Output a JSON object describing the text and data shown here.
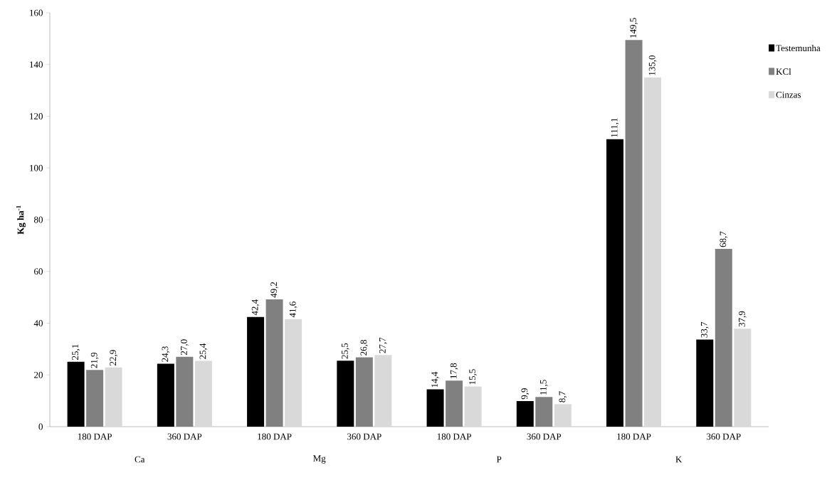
{
  "chart_data": {
    "type": "bar",
    "ylabel": "Kg ha$^{-1}$",
    "categories": [
      "180 DAP",
      "360 DAP",
      "180 DAP",
      "360 DAP",
      "180 DAP",
      "360 DAP",
      "180 DAP",
      "360 DAP"
    ],
    "annotations": [
      "Ca",
      "Mg",
      "P",
      "K"
    ],
    "series": [
      {
        "name": "Testemunha",
        "color": "#000000",
        "values": [
          25.1,
          24.3,
          42.4,
          25.5,
          14.4,
          9.9,
          111.1,
          33.7
        ],
        "value_labels": [
          "25,1",
          "24,3",
          "42,4",
          "25,5",
          "14,4",
          "9,9",
          "111,1",
          "33,7"
        ]
      },
      {
        "name": "KCl",
        "color": "#808080",
        "values": [
          21.9,
          27.0,
          49.2,
          26.8,
          17.8,
          11.5,
          149.5,
          68.7
        ],
        "value_labels": [
          "21,9",
          "27,0",
          "49,2",
          "26,8",
          "17,8",
          "11,5",
          "149,5",
          "68,7"
        ]
      },
      {
        "name": "Cinzas",
        "color": "#d9d9d9",
        "values": [
          22.9,
          25.4,
          41.6,
          27.7,
          15.5,
          8.7,
          135.0,
          37.9
        ],
        "value_labels": [
          "22,9",
          "25,4",
          "41,6",
          "27,7",
          "15,5",
          "8,7",
          "135,0",
          "37,9"
        ]
      }
    ],
    "ylim": [
      0,
      160
    ],
    "yticks": [
      0,
      20,
      40,
      60,
      80,
      100,
      120,
      140,
      160
    ],
    "legend": "right",
    "grid": false
  }
}
